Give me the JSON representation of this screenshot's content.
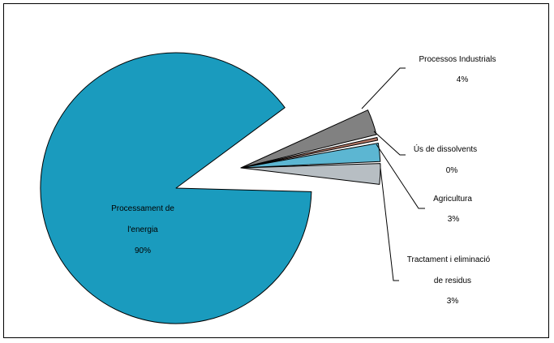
{
  "chart_data": {
    "type": "pie",
    "slices": [
      {
        "label_lines": [
          "Processament de",
          "l'energia"
        ],
        "value_label": "90%",
        "value": 90,
        "color": "#1a9bbe"
      },
      {
        "label_lines": [
          "Processos Industrials"
        ],
        "value_label": "4%",
        "value": 4,
        "color": "#818181"
      },
      {
        "label_lines": [
          "Ús de dissolvents"
        ],
        "value_label": "0%",
        "value": 0,
        "color": "#b87a68"
      },
      {
        "label_lines": [
          "Agricultura"
        ],
        "value_label": "3%",
        "value": 3,
        "color": "#5cb6d2"
      },
      {
        "label_lines": [
          "Tractament i eliminació",
          "de residus"
        ],
        "value_label": "3%",
        "value": 3,
        "color": "#b7bec3"
      }
    ]
  }
}
